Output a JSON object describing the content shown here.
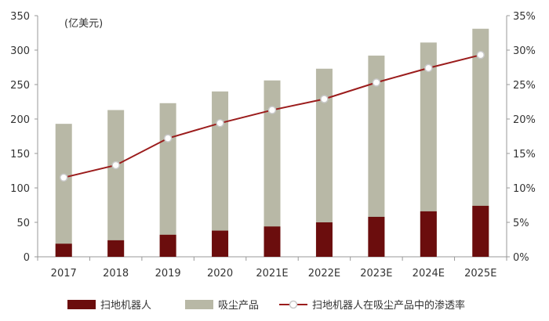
{
  "chart_data": {
    "type": "bar",
    "unit_label": "(亿美元)",
    "categories": [
      "2017",
      "2018",
      "2019",
      "2020",
      "2021E",
      "2022E",
      "2023E",
      "2024E",
      "2025E"
    ],
    "series": [
      {
        "name": "扫地机器人",
        "kind": "bar",
        "axis": "left",
        "color": "#6b0d0d",
        "values": [
          19,
          24,
          32,
          38,
          44,
          50,
          58,
          66,
          74
        ]
      },
      {
        "name": "吸尘产品",
        "kind": "bar",
        "axis": "left",
        "color": "#b8b8a6",
        "values": [
          193,
          213,
          223,
          240,
          256,
          273,
          292,
          311,
          331
        ]
      },
      {
        "name": "扫地机器人在吸尘产品中的渗透率",
        "kind": "line",
        "axis": "right",
        "color": "#9b1c1c",
        "values": [
          11.5,
          13.3,
          17.2,
          19.4,
          21.3,
          22.9,
          25.3,
          27.4,
          29.3
        ]
      }
    ],
    "y_left": {
      "ylim": [
        0,
        350
      ],
      "ticks": [
        "0",
        "50",
        "100",
        "150",
        "200",
        "250",
        "300",
        "350"
      ]
    },
    "y_right": {
      "ylim": [
        0,
        35
      ],
      "ticks": [
        "0%",
        "5%",
        "10%",
        "15%",
        "20%",
        "25%",
        "30%",
        "35%"
      ]
    },
    "legend_position": "bottom",
    "grid": false
  }
}
